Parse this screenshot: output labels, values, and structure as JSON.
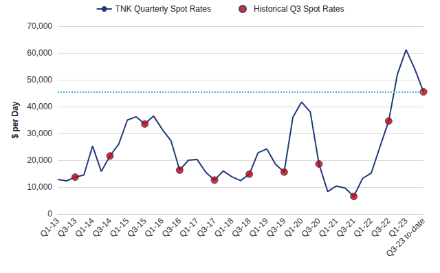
{
  "chart_data": {
    "type": "line",
    "y_label": "$ per Day",
    "categories": [
      "Q1-13",
      null,
      "Q3-13",
      null,
      "Q1-14",
      null,
      "Q3-14",
      null,
      "Q1-15",
      null,
      "Q3-15",
      null,
      "Q1-16",
      null,
      "Q3-16",
      null,
      "Q1-17",
      null,
      "Q3-17",
      null,
      "Q1-18",
      null,
      "Q3-18",
      null,
      "Q1-19",
      null,
      "Q3-19",
      null,
      "Q1-20",
      null,
      "Q3-20",
      null,
      "Q1-21",
      null,
      "Q3-21",
      null,
      "Q1-22",
      null,
      "Q3-22",
      null,
      "Q1-23",
      null,
      "Q3-23 to-date"
    ],
    "series": [
      {
        "name": "TNK Quarterly Spot Rates",
        "type": "line",
        "color": "#1f3a7a",
        "marker": "none",
        "line_style": "solid",
        "values": [
          12800,
          12300,
          13700,
          14500,
          25300,
          15800,
          21600,
          26000,
          35000,
          36200,
          33500,
          36500,
          31500,
          27300,
          16300,
          20000,
          20300,
          15500,
          12600,
          16000,
          13800,
          12400,
          14800,
          22800,
          24200,
          18500,
          15600,
          36000,
          41700,
          38000,
          18600,
          8300,
          10400,
          9600,
          6500,
          13200,
          15200,
          25000,
          34600,
          52000,
          61200,
          54000,
          45500
        ]
      },
      {
        "name": "Historical Q3 Spot Rates",
        "type": "scatter",
        "color": "#c00000",
        "marker": "circle",
        "values": [
          null,
          null,
          13700,
          null,
          null,
          null,
          21600,
          null,
          null,
          null,
          33500,
          null,
          null,
          null,
          16300,
          null,
          null,
          null,
          12600,
          null,
          null,
          null,
          14800,
          null,
          null,
          null,
          15600,
          null,
          null,
          null,
          18600,
          null,
          null,
          null,
          6500,
          null,
          null,
          null,
          34600,
          null,
          null,
          null,
          45500
        ]
      }
    ],
    "reference_line": {
      "value": 45500,
      "color": "#3ab7c7",
      "line_style": "dotted"
    },
    "ylim": [
      0,
      70000
    ],
    "yticks": [
      0,
      {
        "value": 10000,
        "label": "10,000"
      },
      {
        "value": 20000,
        "label": "20,000"
      },
      {
        "value": 30000,
        "label": "30,000"
      },
      {
        "value": 40000,
        "label": "40,000"
      },
      {
        "value": 50000,
        "label": "50,000"
      },
      {
        "value": 60000,
        "label": "60,000"
      },
      {
        "value": 70000,
        "label": "70,000"
      }
    ],
    "grid": true,
    "legend": "top"
  }
}
